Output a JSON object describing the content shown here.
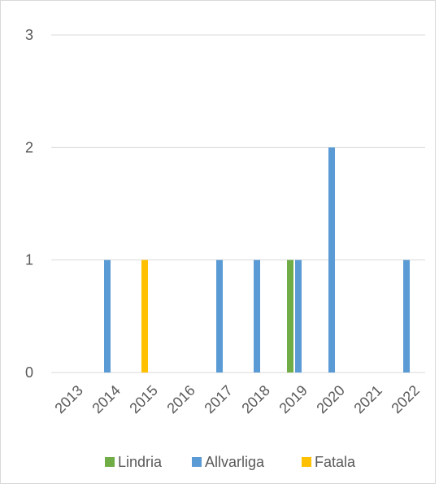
{
  "chart_data": {
    "type": "bar",
    "categories": [
      "2013",
      "2014",
      "2015",
      "2016",
      "2017",
      "2018",
      "2019",
      "2020",
      "2021",
      "2022"
    ],
    "series": [
      {
        "name": "Lindria",
        "color": "#70ad47",
        "values": [
          0,
          0,
          0,
          0,
          0,
          0,
          1,
          0,
          0,
          0
        ]
      },
      {
        "name": "Allvarliga",
        "color": "#5b9bd5",
        "values": [
          0,
          1,
          0,
          0,
          1,
          1,
          1,
          2,
          0,
          1
        ]
      },
      {
        "name": "Fatala",
        "color": "#ffc000",
        "values": [
          0,
          0,
          1,
          0,
          0,
          0,
          0,
          0,
          0,
          0
        ]
      }
    ],
    "ylim": [
      0,
      3
    ],
    "yticks": [
      0,
      1,
      2,
      3
    ],
    "grid": true,
    "legend": "bottom"
  }
}
